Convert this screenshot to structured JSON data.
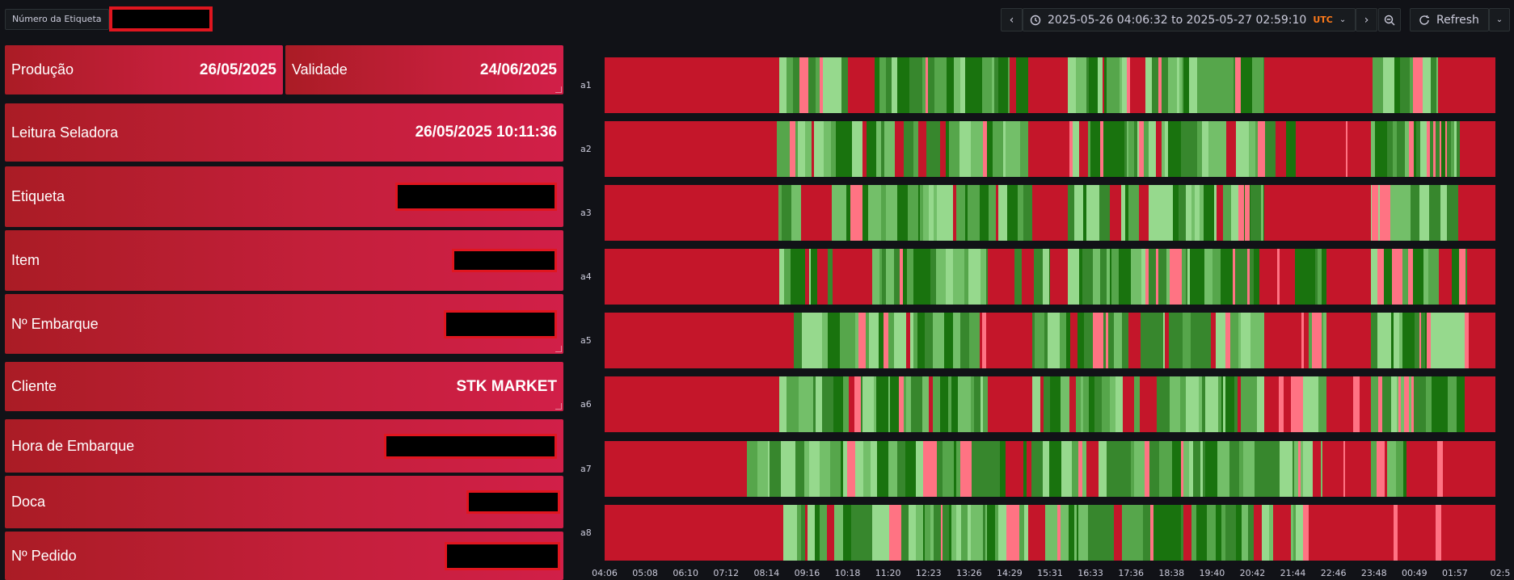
{
  "variable": {
    "label": "Número da Etiqueta",
    "value": ""
  },
  "toolbar": {
    "prev_icon": "chevron-left-icon",
    "next_icon": "chevron-right-icon",
    "time_range": "2025-05-26 04:06:32 to 2025-05-27 02:59:10",
    "timezone": "UTC",
    "zoom_out_icon": "zoom-out-icon",
    "refresh_label": "Refresh"
  },
  "panels": {
    "producao": {
      "label": "Produção",
      "value": "26/05/2025"
    },
    "validade": {
      "label": "Validade",
      "value": "24/06/2025"
    },
    "leitura": {
      "label": "Leitura Seladora",
      "value": "26/05/2025 10:11:36"
    },
    "etiqueta": {
      "label": "Etiqueta"
    },
    "item": {
      "label": "Item"
    },
    "embarque": {
      "label": "Nº Embarque"
    },
    "cliente": {
      "label": "Cliente",
      "value": "STK MARKET"
    },
    "hora_embarque": {
      "label": "Hora de Embarque"
    },
    "doca": {
      "label": "Doca"
    },
    "pedido": {
      "label": "Nº Pedido"
    }
  },
  "colors": {
    "background": "#111217",
    "panel_red": "#c31f3a",
    "state_red": "#c4162a",
    "state_pink": "#ff7383",
    "state_lightgreen": "#96d98d",
    "state_green": "#73bf69",
    "state_midgreen": "#56a64b",
    "state_darkgreen": "#37872d",
    "state_deepgreen": "#19730e"
  },
  "chart_data": {
    "type": "state-timeline",
    "rows": [
      "a1",
      "a2",
      "a3",
      "a4",
      "a5",
      "a6",
      "a7",
      "a8"
    ],
    "x_ticks": [
      "04:06",
      "05:08",
      "06:10",
      "07:12",
      "08:14",
      "09:16",
      "10:18",
      "11:20",
      "12:23",
      "13:26",
      "14:29",
      "15:31",
      "16:33",
      "17:36",
      "18:38",
      "19:40",
      "20:42",
      "21:44",
      "22:46",
      "23:48",
      "00:49",
      "01:57",
      "02:5"
    ]
  }
}
